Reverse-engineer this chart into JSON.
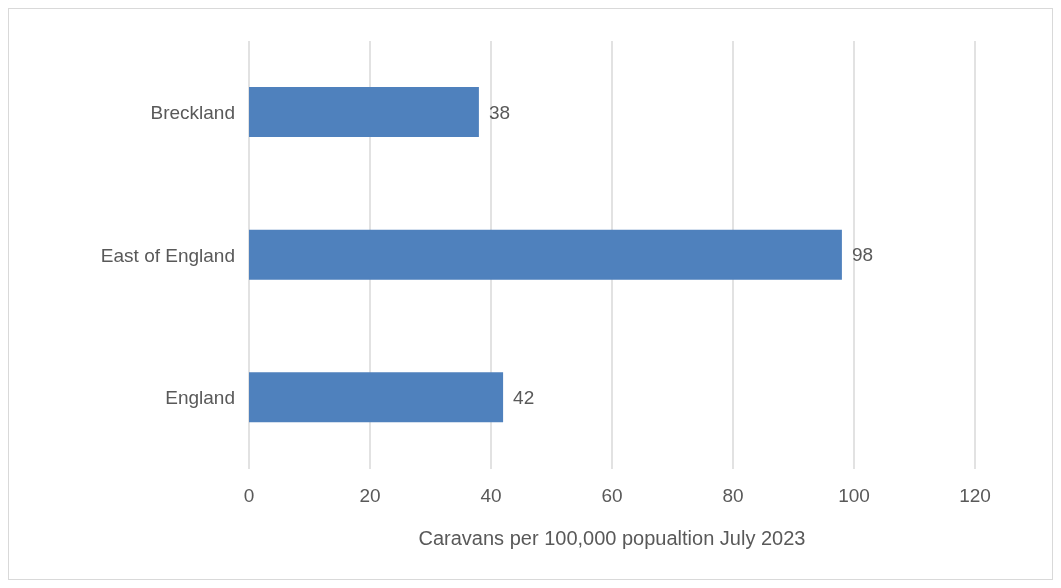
{
  "chart_data": {
    "type": "bar",
    "orientation": "horizontal",
    "xlabel": "Caravans per 100,000 popualtion July 2023",
    "categories": [
      "Breckland",
      "East of England",
      "England"
    ],
    "values": [
      38,
      98,
      42
    ],
    "color": "#4f81bd",
    "data_labels": true,
    "xlim": [
      0,
      120
    ],
    "xticks": [
      0,
      20,
      40,
      60,
      80,
      100,
      120
    ],
    "grid": "x"
  }
}
